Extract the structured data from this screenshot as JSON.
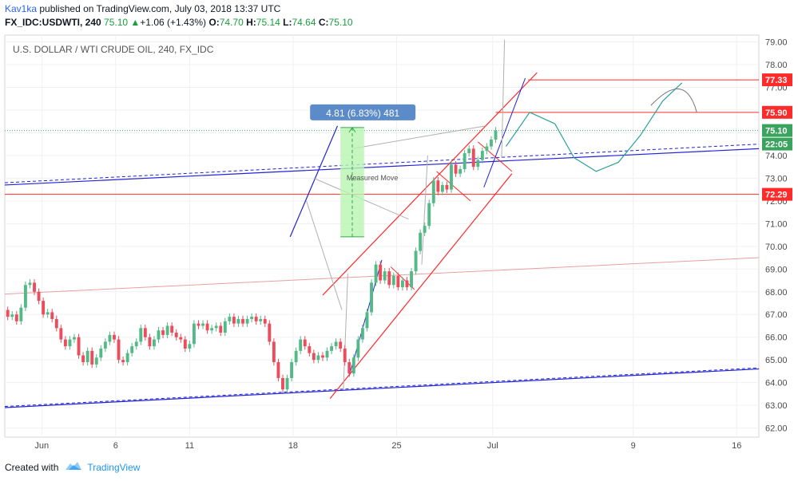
{
  "header": {
    "user": "Kav1ka",
    "published_text": " published on TradingView.com, July 03, 2018 13:37 UTC",
    "symbol": "FX_IDC:USDWTI, 240",
    "last": "75.10",
    "change_arrow": "▲",
    "change": "+1.06 (+1.43%)",
    "o_label": "O:",
    "o": "74.70",
    "h_label": "H:",
    "h": "75.14",
    "l_label": "L:",
    "l": "74.64",
    "c_label": "C:",
    "c": "75.10"
  },
  "footer": {
    "created_with": "Created with",
    "brand": "TradingView"
  },
  "colors": {
    "up": "#53b987",
    "down": "#eb4d5c",
    "trend_red": "#ff2a2a",
    "trend_blue": "#2323d6",
    "forecast": "#2aa198",
    "measure_fill": "#b8f5b0",
    "measure_label_bg": "#5b8bc9",
    "axis_text": "#4a4a4a"
  },
  "chart_data": {
    "type": "candlestick",
    "title": "U.S. DOLLAR / WTI CRUDE OIL, 240, FX_IDC",
    "ylim": [
      61.6,
      79.3
    ],
    "y_ticks": [
      "62.00",
      "63.00",
      "64.00",
      "65.00",
      "66.00",
      "67.00",
      "68.00",
      "69.00",
      "70.00",
      "71.00",
      "72.00",
      "73.00",
      "74.00",
      "75.00",
      "76.00",
      "77.00",
      "78.00",
      "79.00"
    ],
    "x_ticks": [
      "Jun",
      "6",
      "11",
      "18",
      "25",
      "Jul",
      "9",
      "16"
    ],
    "x_tick_days": [
      1,
      6,
      11,
      18,
      25,
      31.5,
      41,
      48
    ],
    "x_range_days": [
      -1.5,
      49.5
    ],
    "last_price": "75.10",
    "countdown": "22:05",
    "price_labels": [
      "77.33",
      "75.90",
      "72.29"
    ],
    "levels": [
      77.33,
      75.9,
      72.29
    ],
    "measured_move": {
      "label": "4.81 (6.83%) 481",
      "text": "Measured Move",
      "from": 70.42,
      "to": 75.23,
      "day_from": 21.2,
      "day_to": 22.8
    },
    "close_series": [
      {
        "day": -1.3,
        "open": 67.2,
        "close": 66.9
      },
      {
        "day": -1.0,
        "open": 66.9,
        "close": 67.0
      },
      {
        "day": -0.7,
        "open": 67.0,
        "close": 66.7
      },
      {
        "day": -0.4,
        "open": 66.7,
        "close": 67.3
      },
      {
        "day": -0.1,
        "open": 67.3,
        "close": 68.3
      },
      {
        "day": 0.2,
        "open": 68.3,
        "close": 68.4
      },
      {
        "day": 0.5,
        "open": 68.4,
        "close": 68.0
      },
      {
        "day": 0.8,
        "open": 68.0,
        "close": 67.6
      },
      {
        "day": 1.1,
        "open": 67.6,
        "close": 67.0
      },
      {
        "day": 1.4,
        "open": 67.0,
        "close": 67.1
      },
      {
        "day": 1.7,
        "open": 67.1,
        "close": 66.8
      },
      {
        "day": 2.0,
        "open": 66.8,
        "close": 66.4
      },
      {
        "day": 2.3,
        "open": 66.4,
        "close": 65.9
      },
      {
        "day": 2.6,
        "open": 65.9,
        "close": 65.6
      },
      {
        "day": 2.9,
        "open": 65.6,
        "close": 65.9
      },
      {
        "day": 3.2,
        "open": 65.9,
        "close": 66.0
      },
      {
        "day": 3.5,
        "open": 66.0,
        "close": 65.2
      },
      {
        "day": 3.8,
        "open": 65.2,
        "close": 64.9
      },
      {
        "day": 4.1,
        "open": 64.9,
        "close": 65.4
      },
      {
        "day": 4.4,
        "open": 65.4,
        "close": 64.8
      },
      {
        "day": 4.7,
        "open": 64.8,
        "close": 65.1
      },
      {
        "day": 5.0,
        "open": 65.1,
        "close": 65.5
      },
      {
        "day": 5.3,
        "open": 65.5,
        "close": 65.8
      },
      {
        "day": 5.6,
        "open": 65.8,
        "close": 66.1
      },
      {
        "day": 5.9,
        "open": 66.1,
        "close": 65.9
      },
      {
        "day": 6.2,
        "open": 65.9,
        "close": 65.0
      },
      {
        "day": 6.5,
        "open": 65.0,
        "close": 64.9
      },
      {
        "day": 6.8,
        "open": 64.9,
        "close": 65.3
      },
      {
        "day": 7.1,
        "open": 65.3,
        "close": 65.6
      },
      {
        "day": 7.4,
        "open": 65.6,
        "close": 65.8
      },
      {
        "day": 7.7,
        "open": 65.8,
        "close": 66.4
      },
      {
        "day": 8.0,
        "open": 66.4,
        "close": 66.0
      },
      {
        "day": 8.3,
        "open": 66.0,
        "close": 65.6
      },
      {
        "day": 8.6,
        "open": 65.6,
        "close": 65.9
      },
      {
        "day": 8.9,
        "open": 65.9,
        "close": 66.3
      },
      {
        "day": 9.2,
        "open": 66.3,
        "close": 66.1
      },
      {
        "day": 9.5,
        "open": 66.1,
        "close": 66.5
      },
      {
        "day": 9.8,
        "open": 66.5,
        "close": 66.2
      },
      {
        "day": 10.1,
        "open": 66.2,
        "close": 66.0
      },
      {
        "day": 10.4,
        "open": 66.0,
        "close": 65.9
      },
      {
        "day": 10.7,
        "open": 65.9,
        "close": 65.5
      },
      {
        "day": 11.0,
        "open": 65.5,
        "close": 65.7
      },
      {
        "day": 11.3,
        "open": 65.7,
        "close": 66.6
      },
      {
        "day": 11.6,
        "open": 66.6,
        "close": 66.5
      },
      {
        "day": 11.9,
        "open": 66.5,
        "close": 66.6
      },
      {
        "day": 12.2,
        "open": 66.6,
        "close": 66.3
      },
      {
        "day": 12.5,
        "open": 66.3,
        "close": 66.4
      },
      {
        "day": 12.8,
        "open": 66.4,
        "close": 66.5
      },
      {
        "day": 13.1,
        "open": 66.5,
        "close": 66.2
      },
      {
        "day": 13.4,
        "open": 66.2,
        "close": 66.7
      },
      {
        "day": 13.7,
        "open": 66.7,
        "close": 66.9
      },
      {
        "day": 14.0,
        "open": 66.9,
        "close": 66.6
      },
      {
        "day": 14.3,
        "open": 66.6,
        "close": 66.8
      },
      {
        "day": 14.6,
        "open": 66.8,
        "close": 66.6
      },
      {
        "day": 14.9,
        "open": 66.6,
        "close": 66.8
      },
      {
        "day": 15.2,
        "open": 66.8,
        "close": 66.9
      },
      {
        "day": 15.5,
        "open": 66.9,
        "close": 66.7
      },
      {
        "day": 15.8,
        "open": 66.7,
        "close": 66.8
      },
      {
        "day": 16.1,
        "open": 66.8,
        "close": 66.6
      },
      {
        "day": 16.4,
        "open": 66.6,
        "close": 65.8
      },
      {
        "day": 16.7,
        "open": 65.8,
        "close": 64.9
      },
      {
        "day": 17.0,
        "open": 64.9,
        "close": 64.2
      },
      {
        "day": 17.3,
        "open": 64.2,
        "close": 63.7
      },
      {
        "day": 17.6,
        "open": 63.7,
        "close": 64.2
      },
      {
        "day": 17.9,
        "open": 64.2,
        "close": 64.9
      },
      {
        "day": 18.2,
        "open": 64.9,
        "close": 65.4
      },
      {
        "day": 18.5,
        "open": 65.4,
        "close": 65.9
      },
      {
        "day": 18.8,
        "open": 65.9,
        "close": 65.6
      },
      {
        "day": 19.1,
        "open": 65.6,
        "close": 65.3
      },
      {
        "day": 19.4,
        "open": 65.3,
        "close": 65.0
      },
      {
        "day": 19.7,
        "open": 65.0,
        "close": 65.2
      },
      {
        "day": 20.0,
        "open": 65.2,
        "close": 65.1
      },
      {
        "day": 20.3,
        "open": 65.1,
        "close": 65.4
      },
      {
        "day": 20.6,
        "open": 65.4,
        "close": 65.6
      },
      {
        "day": 20.9,
        "open": 65.6,
        "close": 65.8
      },
      {
        "day": 21.2,
        "open": 65.8,
        "close": 65.5
      },
      {
        "day": 21.5,
        "open": 65.5,
        "close": 64.9
      },
      {
        "day": 21.8,
        "open": 64.9,
        "close": 64.4
      },
      {
        "day": 22.1,
        "open": 64.4,
        "close": 65.1
      },
      {
        "day": 22.4,
        "open": 65.1,
        "close": 65.9
      },
      {
        "day": 22.7,
        "open": 65.9,
        "close": 66.4
      },
      {
        "day": 23.0,
        "open": 66.4,
        "close": 67.1
      },
      {
        "day": 23.3,
        "open": 67.1,
        "close": 68.4
      },
      {
        "day": 23.6,
        "open": 68.4,
        "close": 69.2
      },
      {
        "day": 23.9,
        "open": 69.2,
        "close": 68.5
      },
      {
        "day": 24.2,
        "open": 68.5,
        "close": 68.9
      },
      {
        "day": 24.5,
        "open": 68.9,
        "close": 68.3
      },
      {
        "day": 24.8,
        "open": 68.3,
        "close": 68.7
      },
      {
        "day": 25.1,
        "open": 68.7,
        "close": 68.2
      },
      {
        "day": 25.4,
        "open": 68.2,
        "close": 68.5
      },
      {
        "day": 25.7,
        "open": 68.5,
        "close": 68.2
      },
      {
        "day": 26.0,
        "open": 68.2,
        "close": 68.9
      },
      {
        "day": 26.3,
        "open": 68.9,
        "close": 69.8
      },
      {
        "day": 26.6,
        "open": 69.8,
        "close": 70.6
      },
      {
        "day": 26.9,
        "open": 70.6,
        "close": 70.9
      },
      {
        "day": 27.2,
        "open": 70.9,
        "close": 71.9
      },
      {
        "day": 27.5,
        "open": 71.9,
        "close": 72.9
      },
      {
        "day": 27.8,
        "open": 72.9,
        "close": 72.4
      },
      {
        "day": 28.1,
        "open": 72.4,
        "close": 72.7
      },
      {
        "day": 28.4,
        "open": 72.7,
        "close": 72.5
      },
      {
        "day": 28.7,
        "open": 72.5,
        "close": 73.6
      },
      {
        "day": 29.0,
        "open": 73.6,
        "close": 73.2
      },
      {
        "day": 29.3,
        "open": 73.2,
        "close": 73.4
      },
      {
        "day": 29.6,
        "open": 73.4,
        "close": 74.1
      },
      {
        "day": 29.9,
        "open": 74.1,
        "close": 74.3
      },
      {
        "day": 30.2,
        "open": 74.3,
        "close": 73.5
      },
      {
        "day": 30.5,
        "open": 73.5,
        "close": 73.8
      },
      {
        "day": 30.8,
        "open": 73.8,
        "close": 74.2
      },
      {
        "day": 31.1,
        "open": 74.2,
        "close": 74.4
      },
      {
        "day": 31.4,
        "open": 74.4,
        "close": 74.7
      },
      {
        "day": 31.7,
        "open": 74.7,
        "close": 75.1
      }
    ]
  }
}
